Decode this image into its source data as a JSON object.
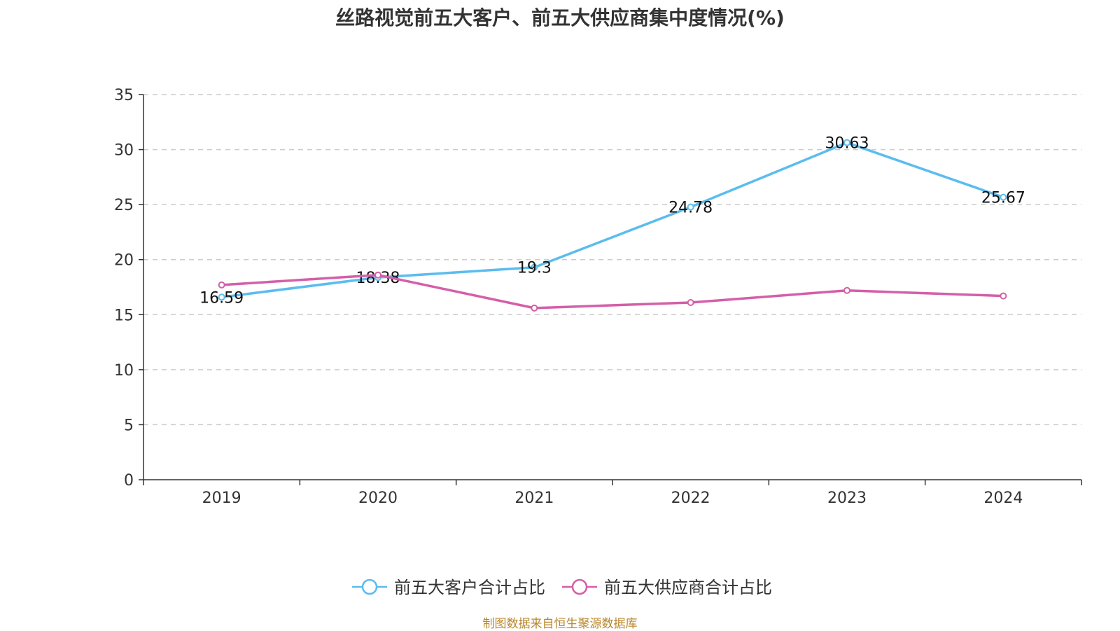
{
  "source_note": "制图数据来自恒生聚源数据库",
  "colors": {
    "series_0": "#5bbcef",
    "series_1": "#d45fa8",
    "grid": "#cccccc",
    "axis": "#333333",
    "source": "#b8862b"
  },
  "chart_data": {
    "type": "line",
    "title": "丝路视觉前五大客户、前五大供应商集中度情况(%)",
    "xlabel": "",
    "ylabel": "",
    "categories": [
      "2019",
      "2020",
      "2021",
      "2022",
      "2023",
      "2024"
    ],
    "ylim": [
      0,
      35
    ],
    "yticks": [
      0,
      5,
      10,
      15,
      20,
      25,
      30,
      35
    ],
    "grid": true,
    "legend_position": "bottom-center",
    "series": [
      {
        "name": "前五大客户合计占比",
        "values": [
          16.59,
          18.38,
          19.3,
          24.78,
          30.63,
          25.67
        ],
        "labels": [
          "16.59",
          "18.38",
          "19.3",
          "24.78",
          "30.63",
          "25.67"
        ],
        "color": "#5bbcef"
      },
      {
        "name": "前五大供应商合计占比",
        "values": [
          17.7,
          18.6,
          15.6,
          16.1,
          17.2,
          16.7
        ],
        "color": "#d45fa8"
      }
    ]
  }
}
